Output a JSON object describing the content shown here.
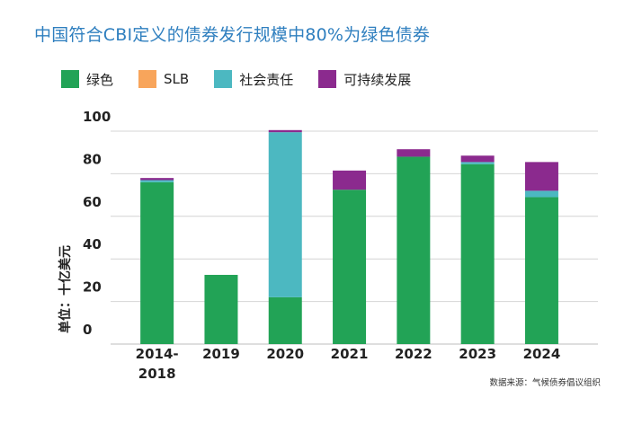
{
  "title": "中国符合CBI定义的债券发行规模中80%为绿色债券",
  "source": "数据来源：气候债券倡议组织",
  "colors": {
    "green": "#22a356",
    "slb": "#f8a55b",
    "social": "#4cb8c1",
    "sustainability": "#8b2a8e"
  },
  "chart_data": {
    "type": "bar",
    "stacked": true,
    "title": "中国符合CBI定义的债券发行规模中80%为绿色债券",
    "ylabel": "单位：十亿美元",
    "xlabel": "",
    "ylim": [
      0,
      100
    ],
    "yticks": [
      0,
      20,
      40,
      60,
      80,
      100
    ],
    "grid": true,
    "legend_position": "top-left",
    "categories": [
      [
        "2014-",
        "2018"
      ],
      [
        "2019"
      ],
      [
        "2020"
      ],
      [
        "2021"
      ],
      [
        "2022"
      ],
      [
        "2023"
      ],
      [
        "2024"
      ]
    ],
    "series": [
      {
        "name": "绿色",
        "color": "#22a356",
        "values": [
          76,
          32.5,
          22,
          72.5,
          88,
          84.5,
          69
        ]
      },
      {
        "name": "SLB",
        "color": "#f8a55b",
        "values": [
          0,
          0,
          0,
          0,
          0,
          0,
          0
        ]
      },
      {
        "name": "社会责任",
        "color": "#4cb8c1",
        "values": [
          1,
          0,
          77.5,
          0,
          0,
          1,
          3
        ]
      },
      {
        "name": "可持续发展",
        "color": "#8b2a8e",
        "values": [
          1,
          0,
          1,
          9,
          3.5,
          3,
          13.5
        ]
      }
    ]
  }
}
